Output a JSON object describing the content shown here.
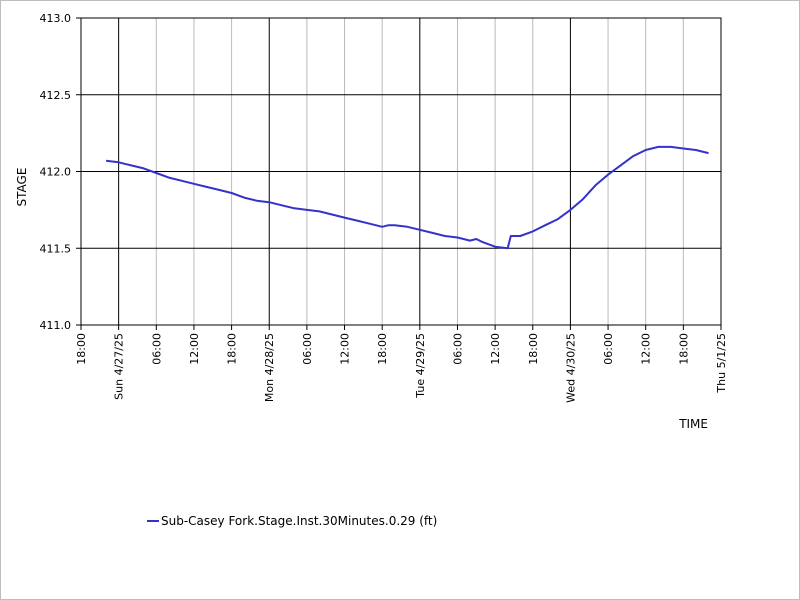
{
  "chart_data": {
    "type": "line",
    "xlabel": "TIME",
    "ylabel": "STAGE",
    "ylim": [
      411.0,
      413.0
    ],
    "y_ticks": [
      "411.0",
      "411.5",
      "412.0",
      "412.5",
      "413.0"
    ],
    "xlim": [
      "2025-04-26 18:00",
      "2025-05-01 00:00"
    ],
    "x_ticks": [
      {
        "label": "18:00",
        "major": false
      },
      {
        "label": "Sun 4/27/25",
        "major": true
      },
      {
        "label": "06:00",
        "major": false
      },
      {
        "label": "12:00",
        "major": false
      },
      {
        "label": "18:00",
        "major": false
      },
      {
        "label": "Mon 4/28/25",
        "major": true
      },
      {
        "label": "06:00",
        "major": false
      },
      {
        "label": "12:00",
        "major": false
      },
      {
        "label": "18:00",
        "major": false
      },
      {
        "label": "Tue 4/29/25",
        "major": true
      },
      {
        "label": "06:00",
        "major": false
      },
      {
        "label": "12:00",
        "major": false
      },
      {
        "label": "18:00",
        "major": false
      },
      {
        "label": "Wed 4/30/25",
        "major": true
      },
      {
        "label": "06:00",
        "major": false
      },
      {
        "label": "12:00",
        "major": false
      },
      {
        "label": "18:00",
        "major": false
      },
      {
        "label": "Thu 5/1/25",
        "major": true
      }
    ],
    "grid": true,
    "legend_position": "bottom-left",
    "series": [
      {
        "name": "Sub-Casey Fork.Stage.Inst.30Minutes.0.29 (ft)",
        "color": "#3333cc",
        "x": [
          "2025-04-26 22:00",
          "2025-04-27 00:00",
          "2025-04-27 02:00",
          "2025-04-27 04:00",
          "2025-04-27 06:00",
          "2025-04-27 08:00",
          "2025-04-27 10:00",
          "2025-04-27 12:00",
          "2025-04-27 14:00",
          "2025-04-27 16:00",
          "2025-04-27 18:00",
          "2025-04-27 20:00",
          "2025-04-27 22:00",
          "2025-04-28 00:00",
          "2025-04-28 02:00",
          "2025-04-28 04:00",
          "2025-04-28 06:00",
          "2025-04-28 08:00",
          "2025-04-28 10:00",
          "2025-04-28 12:00",
          "2025-04-28 14:00",
          "2025-04-28 16:00",
          "2025-04-28 18:00",
          "2025-04-28 19:00",
          "2025-04-28 20:00",
          "2025-04-28 22:00",
          "2025-04-29 00:00",
          "2025-04-29 02:00",
          "2025-04-29 04:00",
          "2025-04-29 06:00",
          "2025-04-29 08:00",
          "2025-04-29 09:00",
          "2025-04-29 10:00",
          "2025-04-29 12:00",
          "2025-04-29 14:00",
          "2025-04-29 14:30",
          "2025-04-29 16:00",
          "2025-04-29 18:00",
          "2025-04-29 20:00",
          "2025-04-29 22:00",
          "2025-04-30 00:00",
          "2025-04-30 02:00",
          "2025-04-30 04:00",
          "2025-04-30 06:00",
          "2025-04-30 08:00",
          "2025-04-30 10:00",
          "2025-04-30 12:00",
          "2025-04-30 14:00",
          "2025-04-30 16:00",
          "2025-04-30 18:00",
          "2025-04-30 20:00",
          "2025-04-30 22:00"
        ],
        "values": [
          412.07,
          412.06,
          412.04,
          412.02,
          411.99,
          411.96,
          411.94,
          411.92,
          411.9,
          411.88,
          411.86,
          411.83,
          411.81,
          411.8,
          411.78,
          411.76,
          411.75,
          411.74,
          411.72,
          411.7,
          411.68,
          411.66,
          411.64,
          411.65,
          411.65,
          411.64,
          411.62,
          411.6,
          411.58,
          411.57,
          411.55,
          411.56,
          411.54,
          411.51,
          411.5,
          411.58,
          411.58,
          411.61,
          411.65,
          411.69,
          411.75,
          411.82,
          411.91,
          411.98,
          412.04,
          412.1,
          412.14,
          412.16,
          412.16,
          412.15,
          412.14,
          412.12
        ]
      }
    ]
  }
}
